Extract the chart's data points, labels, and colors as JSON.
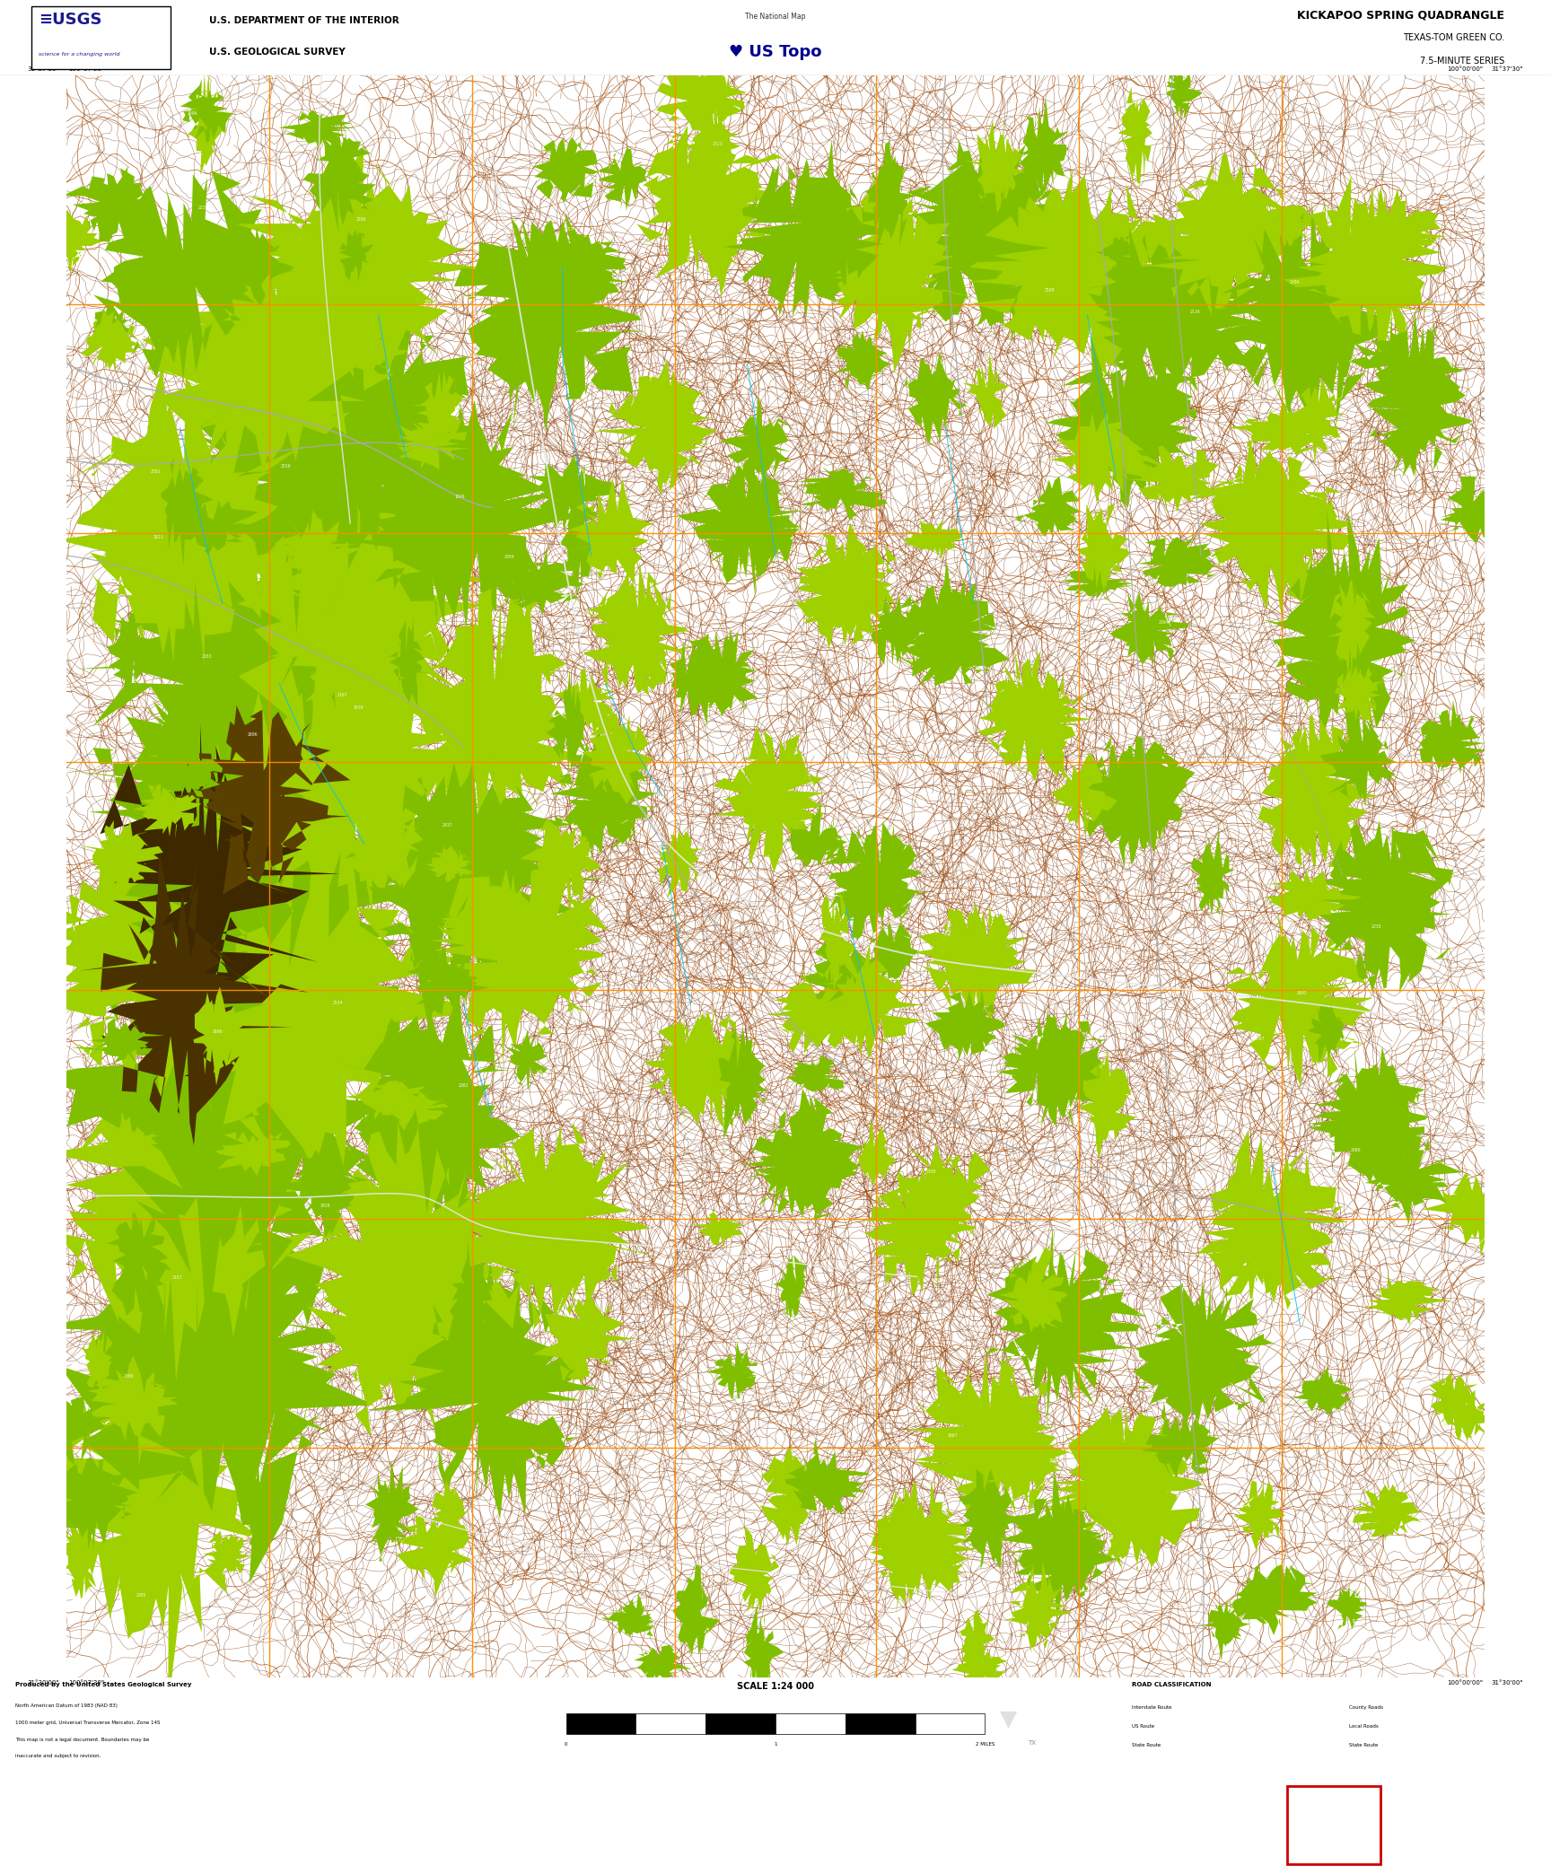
{
  "title": "KICKAPOO SPRING QUADRANGLE",
  "subtitle1": "TEXAS-TOM GREEN CO.",
  "subtitle2": "7.5-MINUTE SERIES",
  "dept_line1": "U.S. DEPARTMENT OF THE INTERIOR",
  "dept_line2": "U.S. GEOLOGICAL SURVEY",
  "scale_text": "SCALE 1:24 000",
  "map_bg_color": "#0a0600",
  "topo_contour_color": "#8B4513",
  "topo_index_color": "#a05010",
  "vegetation_color": "#7FBF00",
  "vegetation_bright": "#9FD000",
  "vegetation_dark_color": "#4a5a00",
  "water_color": "#00BFFF",
  "road_white": "#e8e8e8",
  "road_gray": "#aaaaaa",
  "grid_color": "#FF8C00",
  "border_color": "#000000",
  "header_bg": "#ffffff",
  "bottom_bar_color": "#000000",
  "fig_width": 17.28,
  "fig_height": 20.88,
  "map_l": 0.043,
  "map_r": 0.957,
  "map_b": 0.105,
  "map_t": 0.96,
  "header_b": 0.96,
  "footer_b": 0.055,
  "footer_t": 0.105,
  "black_bar_t": 0.055
}
